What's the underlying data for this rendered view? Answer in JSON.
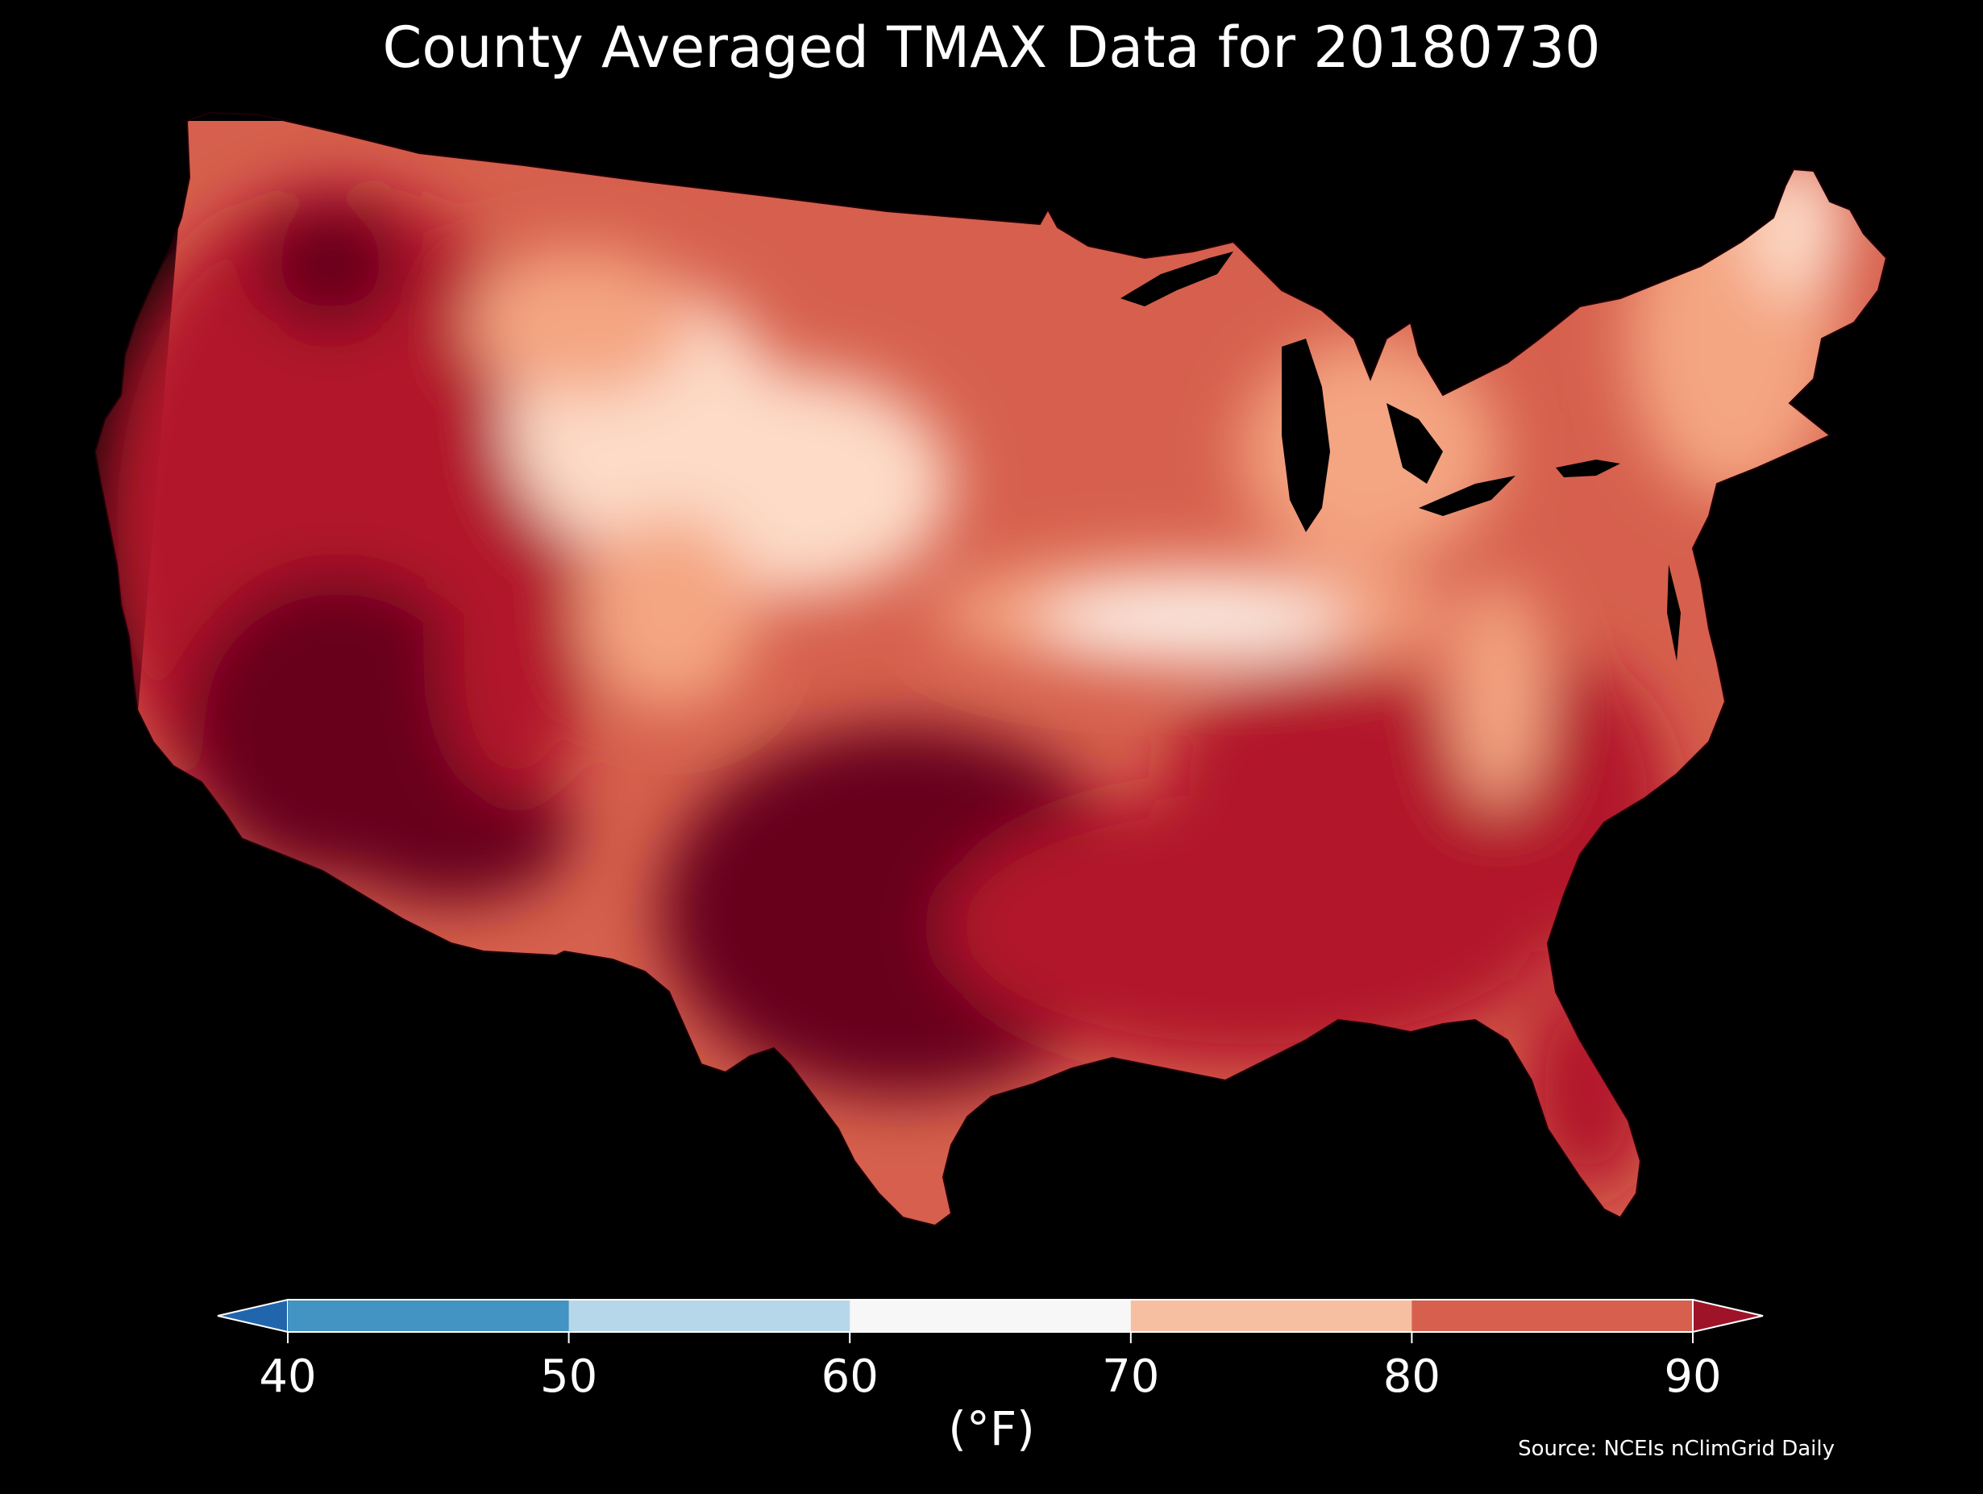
{
  "title": "County Averaged TMAX Data for 20180730",
  "units": "(°F)",
  "source": "Source: NCEIs nClimGrid Daily",
  "colorbar": {
    "ticks": [
      "40",
      "50",
      "60",
      "70",
      "80",
      "90"
    ],
    "bins": [
      {
        "from": "<40",
        "color": "#2166ac"
      },
      {
        "from": "40-50",
        "color": "#4393c3"
      },
      {
        "from": "50-60",
        "color": "#b6d7e9"
      },
      {
        "from": "60-70",
        "color": "#f7f7f7"
      },
      {
        "from": "70-80",
        "color": "#f7bfa2"
      },
      {
        "from": "80-90",
        "color": "#d6604d"
      },
      {
        "from": ">90",
        "color": "#9e1328"
      }
    ],
    "extend": "both"
  },
  "map": {
    "region": "Contiguous United States counties",
    "colors": {
      "hottest": "#67001f",
      "hot": "#b2182b",
      "warm": "#d6604d",
      "mild": "#f4a582",
      "cool": "#fddbc7",
      "coolest": "#fbeee6",
      "water": "#000000"
    }
  }
}
